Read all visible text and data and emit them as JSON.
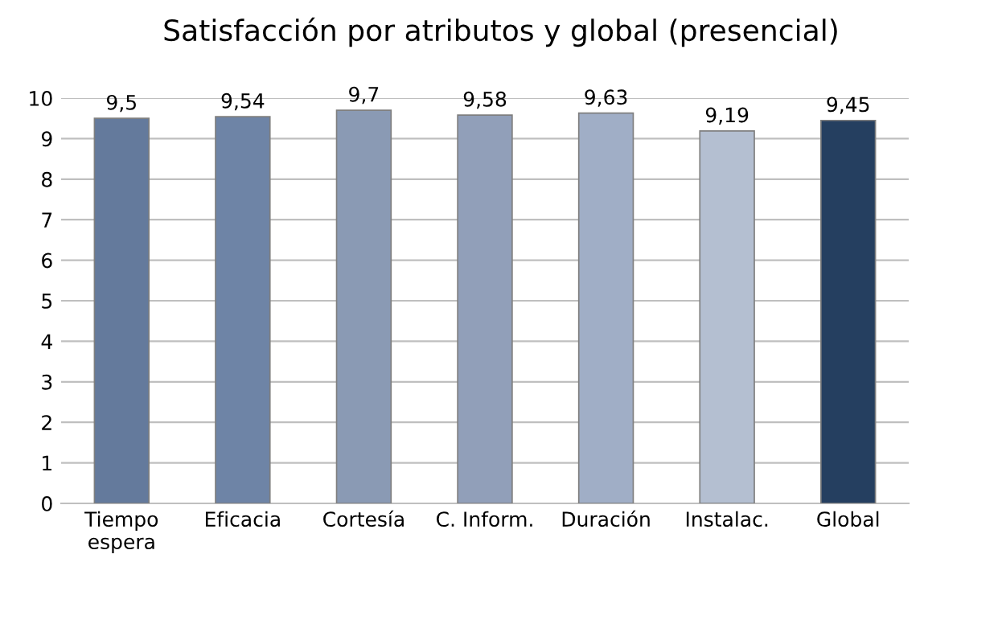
{
  "chart_data": {
    "type": "bar",
    "title": "Satisfacción por atributos y global (presencial)",
    "categories": [
      "Tiempo\nespera",
      "Eficacia",
      "Cortesía",
      "C. Inform.",
      "Duración",
      "Instalac.",
      "Global"
    ],
    "values": [
      9.5,
      9.54,
      9.7,
      9.58,
      9.63,
      9.19,
      9.45
    ],
    "value_labels": [
      "9,5",
      "9,54",
      "9,7",
      "9,58",
      "9,63",
      "9,19",
      "9,45"
    ],
    "colors": [
      "#647a9c",
      "#6e84a6",
      "#8a9ab4",
      "#919fb9",
      "#a0aec6",
      "#b4bfd1",
      "#253f60"
    ],
    "ylim": [
      0,
      10
    ],
    "yticks": [
      0,
      1,
      2,
      3,
      4,
      5,
      6,
      7,
      8,
      9,
      10
    ],
    "grid": "y"
  }
}
